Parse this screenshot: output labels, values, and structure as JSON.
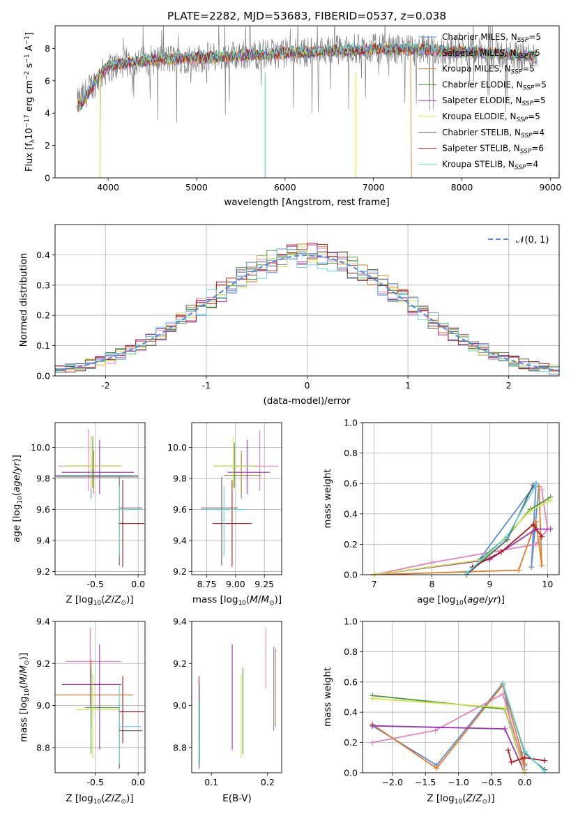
{
  "figure_title": "PLATE=2282, MJD=53683, FIBERID=0537, z=0.038",
  "colors": [
    "#5b8bd9",
    "#e381c0",
    "#e07b26",
    "#4a9a3f",
    "#9932b5",
    "#d7e24a",
    "#5c5c5c",
    "#b01818",
    "#63d3dc"
  ],
  "chart_data": [
    {
      "id": "spectrum",
      "type": "line",
      "title": "PLATE=2282, MJD=53683, FIBERID=0537, z=0.038",
      "xlabel": "wavelength [Angstrom, rest frame]",
      "ylabel": "Flux [f_λ 10^-17 erg cm^-2 s^-1 A^-1]",
      "xlim": [
        3400,
        9100
      ],
      "ylim": [
        0,
        9.4
      ],
      "xticks": [
        4000,
        5000,
        6000,
        7000,
        8000,
        9000
      ],
      "yticks": [
        0,
        2,
        4,
        6,
        8
      ],
      "grid": false,
      "legend_position": "top-right",
      "observed": {
        "name": "",
        "color": "#808080",
        "x_range": [
          3650,
          8850
        ],
        "level_points": [
          [
            3650,
            4.6
          ],
          [
            3800,
            5.6
          ],
          [
            4000,
            6.8
          ],
          [
            4200,
            7.1
          ],
          [
            4500,
            7.3
          ],
          [
            5000,
            7.4
          ],
          [
            5500,
            7.6
          ],
          [
            6000,
            7.7
          ],
          [
            6500,
            7.9
          ],
          [
            7000,
            8.0
          ],
          [
            7500,
            7.9
          ],
          [
            8000,
            7.8
          ],
          [
            8500,
            7.6
          ],
          [
            8850,
            7.5
          ]
        ]
      },
      "series": [
        {
          "name": "Chabrier MILES, N_SSP=5",
          "color": "#5b8bd9"
        },
        {
          "name": "Salpeter MILES, N_SSP=5",
          "color": "#e381c0"
        },
        {
          "name": "Kroupa MILES, N_SSP=5",
          "color": "#e07b26"
        },
        {
          "name": "Chabrier ELODIE, N_SSP=5",
          "color": "#4a9a3f"
        },
        {
          "name": "Salpeter ELODIE, N_SSP=5",
          "color": "#9932b5"
        },
        {
          "name": "Kroupa ELODIE, N_SSP=5",
          "color": "#d7e24a"
        },
        {
          "name": "Chabrier STELIB, N_SSP=4",
          "color": "#5c5c5c"
        },
        {
          "name": "Salpeter STELIB, N_SSP=6",
          "color": "#b01818"
        },
        {
          "name": "Kroupa STELIB, N_SSP=4",
          "color": "#63d3dc"
        }
      ],
      "model_continuum": [
        [
          3650,
          4.4
        ],
        [
          3700,
          4.6
        ],
        [
          3800,
          5.5
        ],
        [
          3900,
          6.3
        ],
        [
          4000,
          6.9
        ],
        [
          4200,
          7.1
        ],
        [
          4500,
          7.3
        ],
        [
          5000,
          7.4
        ],
        [
          5500,
          7.55
        ],
        [
          6000,
          7.7
        ],
        [
          6500,
          7.85
        ],
        [
          7000,
          7.95
        ],
        [
          7400,
          7.95
        ],
        [
          8000,
          7.8
        ],
        [
          8500,
          7.6
        ],
        [
          8850,
          7.5
        ]
      ],
      "drops": [
        {
          "x": 3910,
          "series": "Kroupa ELODIE, N_SSP=5"
        },
        {
          "x": 5775,
          "series": "Kroupa STELIB, N_SSP=4"
        },
        {
          "x": 6800,
          "series": "Kroupa ELODIE, N_SSP=5"
        }
      ],
      "cutoff": {
        "x": 7420,
        "series": "Kroupa MILES, N_SSP=5"
      }
    },
    {
      "id": "residuals",
      "type": "line",
      "xlabel": "(data-model)/error",
      "ylabel": "Normed distribution",
      "xlim": [
        -2.5,
        2.5
      ],
      "ylim": [
        0,
        0.5
      ],
      "xticks": [
        -2,
        -1,
        0,
        1,
        2
      ],
      "yticks": [
        0.0,
        0.1,
        0.2,
        0.3,
        0.4
      ],
      "grid": true,
      "legend_position": "top-right",
      "reference": {
        "name": "𝒩(0, 1)",
        "color": "#5b8bd9",
        "dashed": true
      },
      "bin_width": 0.1,
      "bin_start": -2.5
    },
    {
      "id": "age_vs_Z",
      "type": "scatter",
      "xlabel": "Z [log10(Z/Z⊙)]",
      "ylabel": "age  [log10(age/yr)]",
      "xlim": [
        -0.97,
        0.08
      ],
      "ylim": [
        9.18,
        10.16
      ],
      "xticks": [
        -0.5,
        0.0
      ],
      "yticks": [
        9.2,
        9.4,
        9.6,
        9.8,
        10.0
      ],
      "grid": true,
      "points": [
        {
          "series": 0,
          "x": -0.55,
          "xlo": -0.97,
          "xhi": -0.1,
          "y": 9.82,
          "ylo": 9.67,
          "yhi": 9.95
        },
        {
          "series": 1,
          "x": -0.58,
          "xlo": -0.93,
          "xhi": -0.2,
          "y": 9.88,
          "ylo": 9.72,
          "yhi": 10.12
        },
        {
          "series": 2,
          "x": -0.52,
          "xlo": -0.97,
          "xhi": -0.06,
          "y": 9.82,
          "ylo": 9.7,
          "yhi": 9.98
        },
        {
          "series": 3,
          "x": -0.53,
          "xlo": -0.85,
          "xhi": -0.22,
          "y": 9.88,
          "ylo": 9.74,
          "yhi": 10.07
        },
        {
          "series": 4,
          "x": -0.45,
          "xlo": -0.89,
          "xhi": -0.05,
          "y": 9.84,
          "ylo": 9.7,
          "yhi": 10.05
        },
        {
          "series": 5,
          "x": -0.55,
          "xlo": -0.87,
          "xhi": -0.22,
          "y": 9.88,
          "ylo": 9.74,
          "yhi": 10.08
        },
        {
          "series": 6,
          "x": -0.22,
          "xlo": -0.23,
          "xhi": 0.05,
          "y": 9.61,
          "ylo": 9.24,
          "yhi": 9.81
        },
        {
          "series": 7,
          "x": -0.18,
          "xlo": -0.23,
          "xhi": 0.07,
          "y": 9.51,
          "ylo": 9.23,
          "yhi": 9.79
        },
        {
          "series": 8,
          "x": -0.22,
          "xlo": -0.23,
          "xhi": 0.04,
          "y": 9.6,
          "ylo": 9.3,
          "yhi": 9.75
        },
        {
          "series": 0,
          "x": -0.25,
          "xlo": -0.96,
          "xhi": 0.0,
          "y": 9.82,
          "ylo": 9.82,
          "yhi": 9.82
        },
        {
          "series": 6,
          "x": -0.25,
          "xlo": -0.96,
          "xhi": 0.0,
          "y": 9.81,
          "ylo": 9.81,
          "yhi": 9.81
        }
      ]
    },
    {
      "id": "age_vs_mass",
      "type": "scatter",
      "xlabel": "mass [log10(M/M⊙)]",
      "ylabel": "",
      "xlim": [
        8.62,
        9.4
      ],
      "ylim": [
        9.18,
        10.16
      ],
      "xticks": [
        8.75,
        9.0,
        9.25
      ],
      "yticks": [
        9.2,
        9.4,
        9.6,
        9.8,
        10.0
      ],
      "grid": true,
      "points": [
        {
          "series": 0,
          "x": 9.05,
          "xlo": 8.9,
          "xhi": 9.22,
          "y": 9.82,
          "ylo": 9.67,
          "yhi": 9.95
        },
        {
          "series": 1,
          "x": 9.21,
          "xlo": 8.97,
          "xhi": 9.37,
          "y": 9.88,
          "ylo": 9.72,
          "yhi": 10.11
        },
        {
          "series": 2,
          "x": 9.05,
          "xlo": 8.9,
          "xhi": 9.22,
          "y": 9.82,
          "ylo": 9.7,
          "yhi": 9.98
        },
        {
          "series": 3,
          "x": 8.99,
          "xlo": 8.82,
          "xhi": 9.18,
          "y": 9.88,
          "ylo": 9.74,
          "yhi": 10.03
        },
        {
          "series": 4,
          "x": 9.1,
          "xlo": 8.93,
          "xhi": 9.3,
          "y": 9.84,
          "ylo": 9.7,
          "yhi": 10.05
        },
        {
          "series": 5,
          "x": 8.98,
          "xlo": 8.83,
          "xhi": 9.17,
          "y": 9.88,
          "ylo": 9.74,
          "yhi": 10.07
        },
        {
          "series": 6,
          "x": 8.88,
          "xlo": 8.7,
          "xhi": 9.02,
          "y": 9.61,
          "ylo": 9.24,
          "yhi": 9.81
        },
        {
          "series": 7,
          "x": 8.97,
          "xlo": 8.8,
          "xhi": 9.14,
          "y": 9.51,
          "ylo": 9.23,
          "yhi": 9.79
        },
        {
          "series": 8,
          "x": 8.9,
          "xlo": 8.72,
          "xhi": 9.1,
          "y": 9.6,
          "ylo": 9.3,
          "yhi": 9.75
        }
      ]
    },
    {
      "id": "weight_vs_age",
      "type": "line",
      "xlabel": "age  [log10(age/yr)]",
      "ylabel": "mass weight",
      "xlim": [
        6.8,
        10.2
      ],
      "ylim": [
        0,
        1.0
      ],
      "xticks": [
        7,
        8,
        9,
        10
      ],
      "yticks": [
        0.0,
        0.2,
        0.4,
        0.6,
        0.8,
        1.0
      ],
      "grid": true,
      "series": [
        {
          "color": "#5b8bd9",
          "points": [
            [
              7.0,
              0.0
            ],
            [
              8.8,
              0.09
            ],
            [
              9.8,
              0.6
            ],
            [
              9.72,
              0.05
            ],
            [
              9.85,
              0.58
            ]
          ]
        },
        {
          "color": "#e381c0",
          "points": [
            [
              7.0,
              0.0
            ],
            [
              8.0,
              0.08
            ],
            [
              9.8,
              0.2
            ],
            [
              10.0,
              0.3
            ],
            [
              9.9,
              0.56
            ]
          ]
        },
        {
          "color": "#e07b26",
          "points": [
            [
              7.0,
              0.0
            ],
            [
              9.5,
              0.03
            ],
            [
              9.8,
              0.35
            ],
            [
              9.9,
              0.06
            ],
            [
              9.85,
              0.58
            ]
          ]
        },
        {
          "color": "#4a9a3f",
          "points": [
            [
              7.0,
              0.0
            ],
            [
              8.8,
              0.09
            ],
            [
              9.3,
              0.25
            ],
            [
              9.7,
              0.43
            ],
            [
              10.05,
              0.51
            ]
          ]
        },
        {
          "color": "#9932b5",
          "points": [
            [
              7.0,
              0.0
            ],
            [
              9.0,
              0.1
            ],
            [
              9.8,
              0.3
            ],
            [
              10.05,
              0.3
            ]
          ]
        },
        {
          "color": "#d7e24a",
          "points": [
            [
              7.0,
              0.0
            ],
            [
              8.9,
              0.1
            ],
            [
              9.7,
              0.42
            ],
            [
              10.05,
              0.49
            ]
          ]
        },
        {
          "color": "#5c5c5c",
          "points": [
            [
              8.6,
              0.0
            ],
            [
              9.3,
              0.23
            ],
            [
              9.75,
              0.59
            ]
          ]
        },
        {
          "color": "#b01818",
          "points": [
            [
              8.7,
              0.05
            ],
            [
              9.2,
              0.15
            ],
            [
              9.75,
              0.33
            ],
            [
              9.9,
              0.25
            ]
          ]
        },
        {
          "color": "#63d3dc",
          "points": [
            [
              8.6,
              0.01
            ],
            [
              9.3,
              0.25
            ],
            [
              9.8,
              0.59
            ]
          ]
        }
      ]
    },
    {
      "id": "mass_vs_Z",
      "type": "scatter",
      "xlabel": "Z [log10(Z/Z⊙)]",
      "ylabel": "mass [log10(M/M⊙)]",
      "xlim": [
        -0.97,
        0.08
      ],
      "ylim": [
        8.68,
        9.4
      ],
      "xticks": [
        -0.5,
        0.0
      ],
      "yticks": [
        8.8,
        9.0,
        9.2,
        9.4
      ],
      "grid": true,
      "points": [
        {
          "series": 0,
          "x": -0.55,
          "xlo": -0.97,
          "xhi": -0.1,
          "y": 9.05,
          "ylo": 8.9,
          "yhi": 9.18
        },
        {
          "series": 1,
          "x": -0.56,
          "xlo": -0.85,
          "xhi": -0.2,
          "y": 9.21,
          "ylo": 9.0,
          "yhi": 9.37
        },
        {
          "series": 2,
          "x": -0.55,
          "xlo": -0.96,
          "xhi": -0.06,
          "y": 9.05,
          "ylo": 8.9,
          "yhi": 9.22
        },
        {
          "series": 3,
          "x": -0.55,
          "xlo": -0.62,
          "xhi": -0.22,
          "y": 8.99,
          "ylo": 8.77,
          "yhi": 9.18
        },
        {
          "series": 4,
          "x": -0.45,
          "xlo": -0.89,
          "xhi": -0.2,
          "y": 9.1,
          "ylo": 8.79,
          "yhi": 9.29
        },
        {
          "series": 5,
          "x": -0.53,
          "xlo": -0.73,
          "xhi": -0.22,
          "y": 8.98,
          "ylo": 8.75,
          "yhi": 9.15
        },
        {
          "series": 6,
          "x": -0.22,
          "xlo": -0.23,
          "xhi": 0.05,
          "y": 8.88,
          "ylo": 8.7,
          "yhi": 9.02
        },
        {
          "series": 7,
          "x": -0.18,
          "xlo": -0.23,
          "xhi": 0.07,
          "y": 8.97,
          "ylo": 8.82,
          "yhi": 9.14
        },
        {
          "series": 8,
          "x": -0.22,
          "xlo": -0.23,
          "xhi": 0.04,
          "y": 8.9,
          "ylo": 8.72,
          "yhi": 9.1
        }
      ]
    },
    {
      "id": "mass_vs_ebv",
      "type": "scatter",
      "xlabel": "E(B-V)",
      "ylabel": "",
      "xlim": [
        0.065,
        0.225
      ],
      "ylim": [
        8.68,
        9.4
      ],
      "xticks": [
        0.1,
        0.2
      ],
      "yticks": [
        8.8,
        9.0,
        9.2,
        9.4
      ],
      "grid": false,
      "points": [
        {
          "series": 7,
          "x": 0.078,
          "y": 8.97,
          "ylo": 8.82,
          "yhi": 9.14
        },
        {
          "series": 6,
          "x": 0.078,
          "y": 8.88,
          "ylo": 8.7,
          "yhi": 9.02
        },
        {
          "series": 8,
          "x": 0.079,
          "y": 8.9,
          "ylo": 8.72,
          "yhi": 9.1
        },
        {
          "series": 4,
          "x": 0.137,
          "y": 9.1,
          "ylo": 8.79,
          "yhi": 9.29
        },
        {
          "series": 5,
          "x": 0.153,
          "y": 8.98,
          "ylo": 8.75,
          "yhi": 9.15
        },
        {
          "series": 3,
          "x": 0.156,
          "y": 8.99,
          "ylo": 8.77,
          "yhi": 9.18
        },
        {
          "series": 1,
          "x": 0.197,
          "y": 9.21,
          "ylo": 9.08,
          "yhi": 9.37
        },
        {
          "series": 0,
          "x": 0.211,
          "y": 9.05,
          "ylo": 8.88,
          "yhi": 9.28
        },
        {
          "series": 2,
          "x": 0.214,
          "y": 9.05,
          "ylo": 8.9,
          "yhi": 9.27
        }
      ]
    },
    {
      "id": "weight_vs_Z",
      "type": "line",
      "xlabel": "Z [log10(Z/Z⊙)]",
      "ylabel": "mass weight",
      "xlim": [
        -2.45,
        0.52
      ],
      "ylim": [
        0,
        1.0
      ],
      "xticks": [
        -2.0,
        -1.5,
        -1.0,
        -0.5,
        0.0
      ],
      "yticks": [
        0.0,
        0.2,
        0.4,
        0.6,
        0.8,
        1.0
      ],
      "grid": true,
      "series": [
        {
          "color": "#5b8bd9",
          "points": [
            [
              -2.3,
              0.31
            ],
            [
              -1.33,
              0.05
            ],
            [
              -0.33,
              0.59
            ],
            [
              -0.2,
              0.3
            ],
            [
              0.0,
              0.05
            ]
          ]
        },
        {
          "color": "#e381c0",
          "points": [
            [
              -2.3,
              0.2
            ],
            [
              -1.35,
              0.28
            ],
            [
              -0.33,
              0.52
            ],
            [
              0.0,
              0.02
            ]
          ]
        },
        {
          "color": "#e07b26",
          "points": [
            [
              -2.3,
              0.32
            ],
            [
              -1.33,
              0.03
            ],
            [
              -0.33,
              0.58
            ],
            [
              0.0,
              0.06
            ]
          ]
        },
        {
          "color": "#4a9a3f",
          "points": [
            [
              -2.3,
              0.51
            ],
            [
              -0.3,
              0.42
            ],
            [
              0.0,
              0.0
            ]
          ]
        },
        {
          "color": "#9932b5",
          "points": [
            [
              -2.3,
              0.31
            ],
            [
              -0.3,
              0.29
            ],
            [
              0.0,
              0.0
            ]
          ]
        },
        {
          "color": "#d7e24a",
          "points": [
            [
              -2.3,
              0.49
            ],
            [
              -0.3,
              0.43
            ],
            [
              0.0,
              0.0
            ]
          ]
        },
        {
          "color": "#5c5c5c",
          "points": [
            [
              -0.33,
              0.59
            ],
            [
              0.0,
              0.13
            ],
            [
              0.3,
              0.02
            ]
          ]
        },
        {
          "color": "#b01818",
          "points": [
            [
              -0.25,
              0.15
            ],
            [
              -0.2,
              0.07
            ],
            [
              0.0,
              0.1
            ],
            [
              0.3,
              0.08
            ]
          ]
        },
        {
          "color": "#63d3dc",
          "points": [
            [
              -0.33,
              0.59
            ],
            [
              0.0,
              0.14
            ],
            [
              0.3,
              0.01
            ]
          ]
        }
      ]
    }
  ]
}
